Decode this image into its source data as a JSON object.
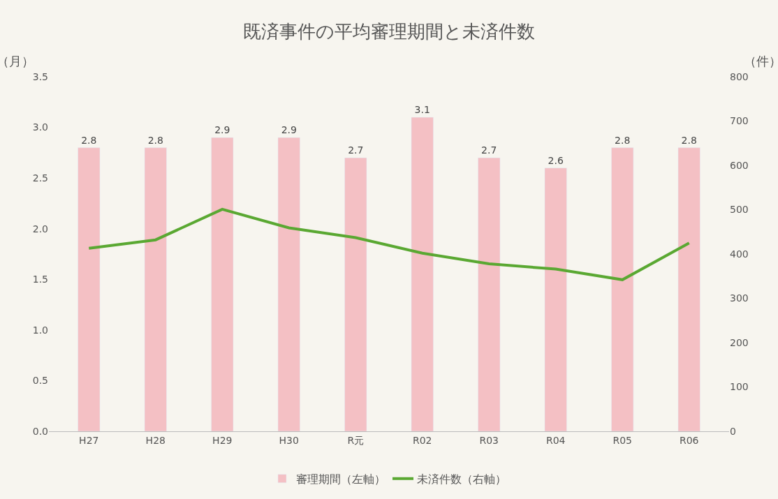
{
  "chart_data": {
    "type": "bar",
    "title": "既済事件の平均審理期間と未済件数",
    "ylabel": "（月）",
    "y2label": "（件）",
    "categories": [
      "H27",
      "H28",
      "H29",
      "H30",
      "R元",
      "R02",
      "R03",
      "R04",
      "R05",
      "R06"
    ],
    "series": [
      {
        "name": "審理期間（左軸）",
        "color": "#f4c0c4",
        "values": [
          2.8,
          2.8,
          2.9,
          2.9,
          2.7,
          3.1,
          2.7,
          2.6,
          2.8,
          2.8
        ],
        "value_labels": [
          "2.8",
          "2.8",
          "2.9",
          "2.9",
          "2.7",
          "3.1",
          "2.7",
          "2.6",
          "2.8",
          "2.8"
        ]
      },
      {
        "name": "未済件数（右軸）",
        "type": "line",
        "axis": "y2",
        "color": "#5aa832",
        "values": [
          413,
          432,
          501,
          459,
          437,
          402,
          378,
          366,
          342,
          425
        ]
      }
    ],
    "ylim": [
      0,
      3.5
    ],
    "yticks": [
      {
        "value": 0,
        "label": "0.0"
      },
      {
        "value": 0.5,
        "label": "0.5"
      },
      {
        "value": 1,
        "label": "1.0"
      },
      {
        "value": 1.5,
        "label": "1.5"
      },
      {
        "value": 2,
        "label": "2.0"
      },
      {
        "value": 2.5,
        "label": "2.5"
      },
      {
        "value": 3,
        "label": "3.0"
      },
      {
        "value": 3.5,
        "label": "3.5"
      }
    ],
    "y2lim": [
      0,
      800
    ],
    "y2ticks": [
      0,
      100,
      200,
      300,
      400,
      500,
      600,
      700,
      800
    ],
    "grid": false,
    "legend": "bottom",
    "marker": "none",
    "line_style": "solid"
  }
}
